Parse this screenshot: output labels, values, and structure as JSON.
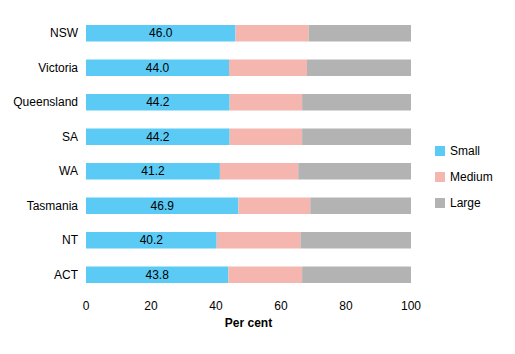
{
  "chart_data": {
    "type": "bar",
    "orientation": "horizontal",
    "stacked": true,
    "grid": false,
    "legend": "right",
    "x_label": "Per cent",
    "categories": [
      "NSW",
      "Victoria",
      "Queensland",
      "SA",
      "WA",
      "Tasmania",
      "NT",
      "ACT"
    ],
    "xlim": [
      0,
      100
    ],
    "xticks": [
      0,
      20,
      40,
      60,
      80,
      100
    ],
    "series": [
      {
        "name": "Small",
        "color": "#5bcbf5",
        "data_labels": true,
        "values": [
          46.0,
          44.0,
          44.2,
          44.2,
          41.2,
          46.9,
          40.2,
          43.8
        ],
        "value_labels": [
          "46.0",
          "44.0",
          "44.2",
          "44.2",
          "41.2",
          "46.9",
          "40.2",
          "43.8"
        ]
      },
      {
        "name": "Medium",
        "color": "#f4b6ae",
        "values": [
          22.5,
          24.0,
          22.3,
          22.3,
          24.1,
          22.1,
          25.8,
          22.7
        ]
      },
      {
        "name": "Large",
        "color": "#b3b3b3",
        "values": [
          31.5,
          32.0,
          33.5,
          33.5,
          34.7,
          31.0,
          34.0,
          33.5
        ]
      }
    ]
  }
}
